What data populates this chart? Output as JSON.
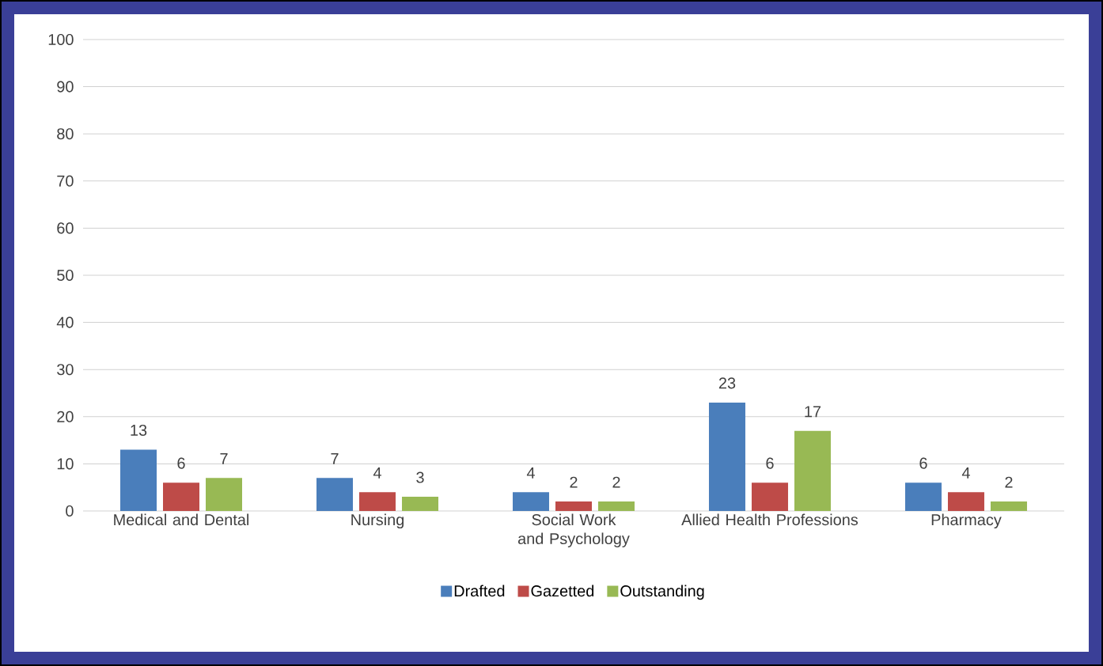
{
  "chart_data": {
    "type": "bar",
    "categories": [
      "Medical and Dental",
      "Nursing",
      "Social Work and Psychology",
      "Allied Health Professions",
      "Pharmacy"
    ],
    "series": [
      {
        "name": "Drafted",
        "color": "#4a7ebb",
        "values": [
          13,
          7,
          4,
          23,
          6
        ]
      },
      {
        "name": "Gazetted",
        "color": "#be4b48",
        "values": [
          6,
          4,
          2,
          6,
          4
        ]
      },
      {
        "name": "Outstanding",
        "color": "#98b954",
        "values": [
          7,
          3,
          2,
          17,
          2
        ]
      }
    ],
    "ylim": [
      0,
      100
    ],
    "yticks": [
      0,
      10,
      20,
      30,
      40,
      50,
      60,
      70,
      80,
      90,
      100
    ],
    "grid": "y",
    "legend": "bottom",
    "data_labels": true
  }
}
